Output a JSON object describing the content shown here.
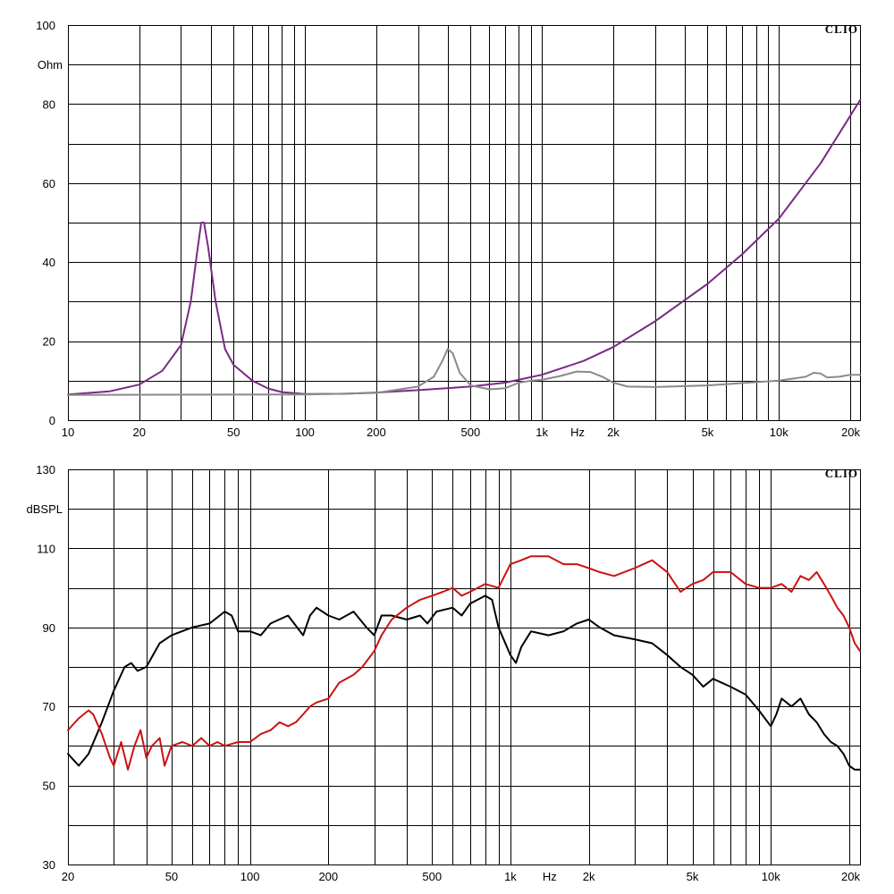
{
  "chart_data": [
    {
      "type": "line",
      "brand": "CLIO",
      "ylabel": "Ohm",
      "xlabel": "Hz",
      "xscale": "log",
      "xlim": [
        10,
        22000
      ],
      "ylim": [
        0,
        100
      ],
      "grid": true,
      "x_ticks": [
        {
          "v": 10,
          "label": "10"
        },
        {
          "v": 20,
          "label": "20"
        },
        {
          "v": 50,
          "label": "50"
        },
        {
          "v": 100,
          "label": "100"
        },
        {
          "v": 200,
          "label": "200"
        },
        {
          "v": 500,
          "label": "500"
        },
        {
          "v": 1000,
          "label": "1k"
        },
        {
          "v": 2000,
          "label": "2k"
        },
        {
          "v": 5000,
          "label": "5k"
        },
        {
          "v": 10000,
          "label": "10k"
        },
        {
          "v": 20000,
          "label": "20k"
        }
      ],
      "y_ticks": [
        0,
        20,
        40,
        60,
        80,
        100
      ],
      "series": [
        {
          "color": "#7b2a86",
          "points": [
            [
              10,
              6.5
            ],
            [
              15,
              7.3
            ],
            [
              20,
              9
            ],
            [
              25,
              12.5
            ],
            [
              30,
              19
            ],
            [
              33,
              30
            ],
            [
              35,
              42
            ],
            [
              36.5,
              50
            ],
            [
              37.5,
              50
            ],
            [
              39,
              44
            ],
            [
              42,
              30
            ],
            [
              46,
              18
            ],
            [
              50,
              14
            ],
            [
              60,
              10
            ],
            [
              70,
              8
            ],
            [
              80,
              7.1
            ],
            [
              100,
              6.6
            ],
            [
              150,
              6.7
            ],
            [
              200,
              7
            ],
            [
              300,
              7.6
            ],
            [
              500,
              8.5
            ],
            [
              700,
              9.5
            ],
            [
              1000,
              11.5
            ],
            [
              1500,
              15
            ],
            [
              2000,
              18.5
            ],
            [
              3000,
              25
            ],
            [
              5000,
              34.5
            ],
            [
              7000,
              42
            ],
            [
              10000,
              51
            ],
            [
              15000,
              65
            ],
            [
              20000,
              77
            ],
            [
              22000,
              81
            ]
          ]
        },
        {
          "color": "#8a8a8a",
          "points": [
            [
              10,
              6.4
            ],
            [
              100,
              6.5
            ],
            [
              200,
              6.9
            ],
            [
              300,
              8.5
            ],
            [
              350,
              11
            ],
            [
              380,
              15
            ],
            [
              400,
              18
            ],
            [
              420,
              17
            ],
            [
              450,
              12
            ],
            [
              500,
              8.8
            ],
            [
              600,
              7.8
            ],
            [
              700,
              8.1
            ],
            [
              800,
              9.5
            ],
            [
              900,
              10
            ],
            [
              1000,
              10.2
            ],
            [
              1200,
              11.2
            ],
            [
              1400,
              12.3
            ],
            [
              1600,
              12.2
            ],
            [
              1800,
              11
            ],
            [
              2000,
              9.5
            ],
            [
              2300,
              8.5
            ],
            [
              3000,
              8.4
            ],
            [
              5000,
              8.8
            ],
            [
              10000,
              10
            ],
            [
              13000,
              11
            ],
            [
              14000,
              12
            ],
            [
              15000,
              11.8
            ],
            [
              16000,
              10.8
            ],
            [
              18000,
              11
            ],
            [
              20000,
              11.5
            ],
            [
              22000,
              11.5
            ]
          ]
        }
      ]
    },
    {
      "type": "line",
      "brand": "CLIO",
      "ylabel": "dBSPL",
      "xlabel": "Hz",
      "xscale": "log",
      "xlim": [
        20,
        22000
      ],
      "ylim": [
        30,
        130
      ],
      "grid": true,
      "x_ticks": [
        {
          "v": 20,
          "label": "20"
        },
        {
          "v": 50,
          "label": "50"
        },
        {
          "v": 100,
          "label": "100"
        },
        {
          "v": 200,
          "label": "200"
        },
        {
          "v": 500,
          "label": "500"
        },
        {
          "v": 1000,
          "label": "1k"
        },
        {
          "v": 2000,
          "label": "2k"
        },
        {
          "v": 5000,
          "label": "5k"
        },
        {
          "v": 10000,
          "label": "10k"
        },
        {
          "v": 20000,
          "label": "20k"
        }
      ],
      "y_ticks": [
        30,
        50,
        70,
        90,
        110,
        130
      ],
      "series": [
        {
          "color": "#000000",
          "points": [
            [
              20,
              58
            ],
            [
              22,
              55
            ],
            [
              24,
              58
            ],
            [
              27,
              66
            ],
            [
              30,
              74
            ],
            [
              33,
              80
            ],
            [
              35,
              81
            ],
            [
              37,
              79
            ],
            [
              40,
              80
            ],
            [
              45,
              86
            ],
            [
              50,
              88
            ],
            [
              60,
              90
            ],
            [
              70,
              91
            ],
            [
              80,
              94
            ],
            [
              85,
              93
            ],
            [
              90,
              89
            ],
            [
              100,
              89
            ],
            [
              110,
              88
            ],
            [
              120,
              91
            ],
            [
              140,
              93
            ],
            [
              160,
              88
            ],
            [
              170,
              93
            ],
            [
              180,
              95
            ],
            [
              200,
              93
            ],
            [
              220,
              92
            ],
            [
              250,
              94
            ],
            [
              280,
              90
            ],
            [
              300,
              88
            ],
            [
              320,
              93
            ],
            [
              350,
              93
            ],
            [
              400,
              92
            ],
            [
              450,
              93
            ],
            [
              480,
              91
            ],
            [
              520,
              94
            ],
            [
              600,
              95
            ],
            [
              650,
              93
            ],
            [
              700,
              96
            ],
            [
              800,
              98
            ],
            [
              850,
              97
            ],
            [
              900,
              90
            ],
            [
              1000,
              83
            ],
            [
              1050,
              81
            ],
            [
              1100,
              85
            ],
            [
              1200,
              89
            ],
            [
              1400,
              88
            ],
            [
              1600,
              89
            ],
            [
              1800,
              91
            ],
            [
              2000,
              92
            ],
            [
              2200,
              90
            ],
            [
              2500,
              88
            ],
            [
              3000,
              87
            ],
            [
              3500,
              86
            ],
            [
              4000,
              83
            ],
            [
              4500,
              80
            ],
            [
              5000,
              78
            ],
            [
              5500,
              75
            ],
            [
              6000,
              77
            ],
            [
              7000,
              75
            ],
            [
              8000,
              73
            ],
            [
              9000,
              69
            ],
            [
              10000,
              65
            ],
            [
              10500,
              68
            ],
            [
              11000,
              72
            ],
            [
              12000,
              70
            ],
            [
              13000,
              72
            ],
            [
              14000,
              68
            ],
            [
              15000,
              66
            ],
            [
              16000,
              63
            ],
            [
              17000,
              61
            ],
            [
              18000,
              60
            ],
            [
              19000,
              58
            ],
            [
              20000,
              55
            ],
            [
              21000,
              54
            ],
            [
              22000,
              54
            ]
          ]
        },
        {
          "color": "#cc1111",
          "points": [
            [
              20,
              64
            ],
            [
              22,
              67
            ],
            [
              24,
              69
            ],
            [
              25,
              68
            ],
            [
              27,
              63
            ],
            [
              29,
              57
            ],
            [
              30,
              55
            ],
            [
              32,
              61
            ],
            [
              34,
              54
            ],
            [
              36,
              60
            ],
            [
              38,
              64
            ],
            [
              40,
              57
            ],
            [
              42,
              60
            ],
            [
              45,
              62
            ],
            [
              47,
              55
            ],
            [
              50,
              60
            ],
            [
              55,
              61
            ],
            [
              60,
              60
            ],
            [
              65,
              62
            ],
            [
              70,
              60
            ],
            [
              75,
              61
            ],
            [
              80,
              60
            ],
            [
              90,
              61
            ],
            [
              100,
              61
            ],
            [
              110,
              63
            ],
            [
              120,
              64
            ],
            [
              130,
              66
            ],
            [
              140,
              65
            ],
            [
              150,
              66
            ],
            [
              160,
              68
            ],
            [
              170,
              70
            ],
            [
              180,
              71
            ],
            [
              200,
              72
            ],
            [
              220,
              76
            ],
            [
              250,
              78
            ],
            [
              270,
              80
            ],
            [
              300,
              84
            ],
            [
              320,
              88
            ],
            [
              350,
              92
            ],
            [
              400,
              95
            ],
            [
              450,
              97
            ],
            [
              500,
              98
            ],
            [
              550,
              99
            ],
            [
              600,
              100
            ],
            [
              650,
              98
            ],
            [
              700,
              99
            ],
            [
              800,
              101
            ],
            [
              900,
              100
            ],
            [
              1000,
              106
            ],
            [
              1100,
              107
            ],
            [
              1200,
              108
            ],
            [
              1400,
              108
            ],
            [
              1600,
              106
            ],
            [
              1800,
              106
            ],
            [
              2000,
              105
            ],
            [
              2200,
              104
            ],
            [
              2500,
              103
            ],
            [
              3000,
              105
            ],
            [
              3500,
              107
            ],
            [
              4000,
              104
            ],
            [
              4500,
              99
            ],
            [
              5000,
              101
            ],
            [
              5500,
              102
            ],
            [
              6000,
              104
            ],
            [
              7000,
              104
            ],
            [
              8000,
              101
            ],
            [
              9000,
              100
            ],
            [
              10000,
              100
            ],
            [
              11000,
              101
            ],
            [
              12000,
              99
            ],
            [
              13000,
              103
            ],
            [
              14000,
              102
            ],
            [
              15000,
              104
            ],
            [
              16000,
              101
            ],
            [
              17000,
              98
            ],
            [
              18000,
              95
            ],
            [
              19000,
              93
            ],
            [
              20000,
              90
            ],
            [
              21000,
              86
            ],
            [
              22000,
              84
            ]
          ]
        }
      ]
    }
  ]
}
